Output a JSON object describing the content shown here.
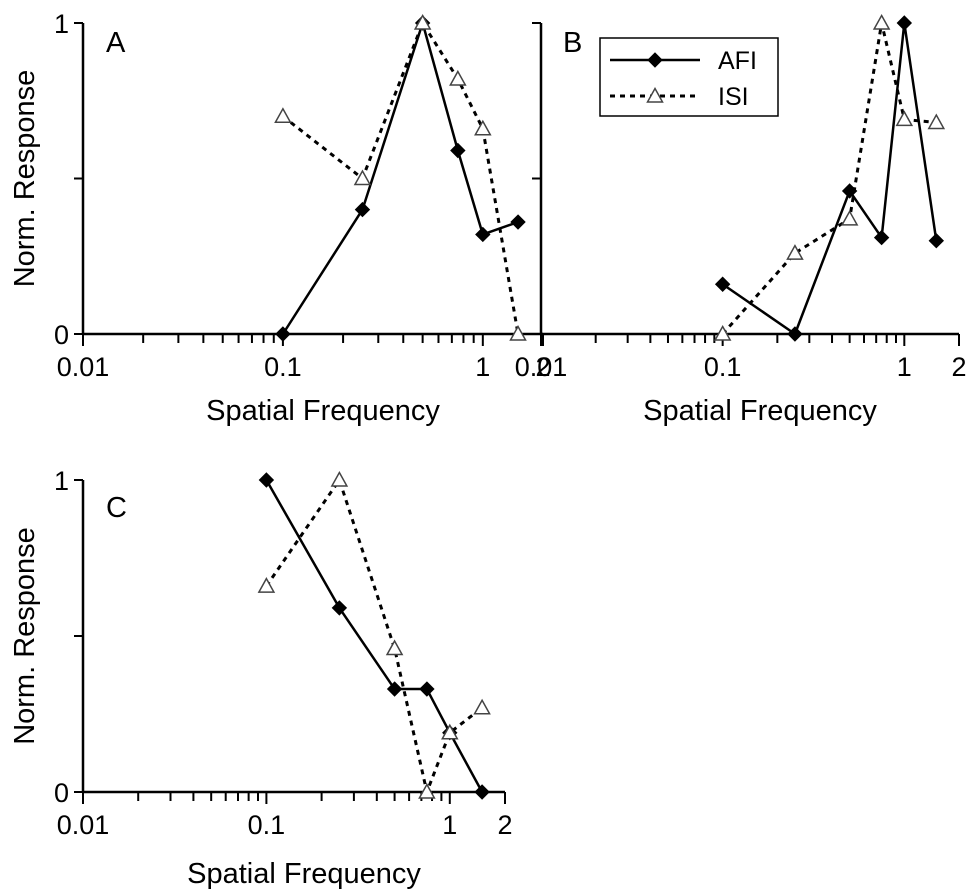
{
  "chart_data": [
    {
      "type": "line",
      "panel_label": "A",
      "xlabel": "Spatial Frequency",
      "ylabel": "Norm. Response",
      "xscale": "log",
      "xlim": [
        0.01,
        2
      ],
      "ylim": [
        0,
        1
      ],
      "xticklabels": [
        "0.01",
        "0.1",
        "1",
        "2"
      ],
      "yticklabels": [
        "0",
        "1"
      ],
      "legend": null,
      "series": [
        {
          "name": "AFI",
          "x": [
            0.1,
            0.25,
            0.5,
            0.75,
            1.0,
            1.5
          ],
          "y": [
            0.0,
            0.4,
            1.0,
            0.59,
            0.32,
            0.36
          ]
        },
        {
          "name": "ISI",
          "x": [
            0.1,
            0.25,
            0.5,
            0.75,
            1.0,
            1.5
          ],
          "y": [
            0.7,
            0.5,
            1.0,
            0.82,
            0.66,
            0.0
          ]
        }
      ]
    },
    {
      "type": "line",
      "panel_label": "B",
      "xlabel": "Spatial Frequency",
      "ylabel": "",
      "xscale": "log",
      "xlim": [
        0.01,
        2
      ],
      "ylim": [
        0,
        1
      ],
      "xticklabels": [
        "0.01",
        "0.1",
        "1",
        "2"
      ],
      "yticklabels": [],
      "legend": "top-center",
      "series": [
        {
          "name": "AFI",
          "x": [
            0.1,
            0.25,
            0.5,
            0.75,
            1.0,
            1.5
          ],
          "y": [
            0.16,
            0.0,
            0.46,
            0.31,
            1.0,
            0.3
          ]
        },
        {
          "name": "ISI",
          "x": [
            0.1,
            0.25,
            0.5,
            0.75,
            1.0,
            1.5
          ],
          "y": [
            0.0,
            0.26,
            0.37,
            1.0,
            0.69,
            0.68
          ]
        }
      ]
    },
    {
      "type": "line",
      "panel_label": "C",
      "xlabel": "Spatial Frequency",
      "ylabel": "Norm. Response",
      "xscale": "log",
      "xlim": [
        0.01,
        2
      ],
      "ylim": [
        0,
        1
      ],
      "xticklabels": [
        "0.01",
        "0.1",
        "1",
        "2"
      ],
      "yticklabels": [
        "0",
        "1"
      ],
      "legend": null,
      "series": [
        {
          "name": "AFI",
          "x": [
            0.1,
            0.25,
            0.5,
            0.75,
            1.0,
            1.5
          ],
          "y": [
            1.0,
            0.59,
            0.33,
            0.33,
            0.19,
            0.0
          ]
        },
        {
          "name": "ISI",
          "x": [
            0.1,
            0.25,
            0.5,
            0.75,
            1.0,
            1.5
          ],
          "y": [
            0.66,
            1.0,
            0.46,
            0.0,
            0.19,
            0.27
          ]
        }
      ]
    }
  ],
  "legend": {
    "entries": [
      {
        "name": "AFI",
        "style": "solid",
        "marker": "filled-diamond"
      },
      {
        "name": "ISI",
        "style": "dotted",
        "marker": "open-triangle"
      }
    ]
  },
  "colors": {
    "line": "#000000",
    "background": "#ffffff",
    "marker_open_fill": "#ffffff"
  }
}
